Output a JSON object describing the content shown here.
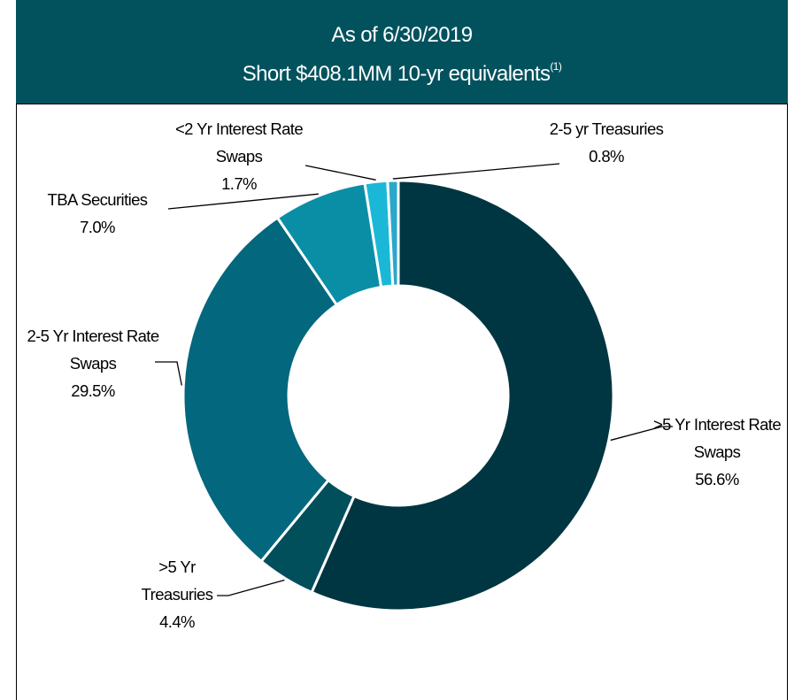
{
  "chart_data": {
    "type": "donut",
    "title": "As of 6/30/2019",
    "subtitle": "Short $408.1MM 10-yr equivalents",
    "footnote_marker": "(1)",
    "categories": [
      ">5 Yr Interest Rate Swaps",
      ">5 Yr Treasuries",
      "2-5 Yr Interest Rate Swaps",
      "TBA Securities",
      "<2 Yr Interest Rate Swaps",
      "2-5 yr Treasuries"
    ],
    "values": [
      56.6,
      4.4,
      29.5,
      7.0,
      1.7,
      0.8
    ],
    "value_labels": [
      "56.6%",
      "4.4%",
      "29.5%",
      "7.0%",
      "1.7%",
      "0.8%"
    ],
    "colors": [
      "#003641",
      "#024f5c",
      "#03677d",
      "#0a8ea6",
      "#1ab8d6",
      "#2aa8cc"
    ]
  }
}
